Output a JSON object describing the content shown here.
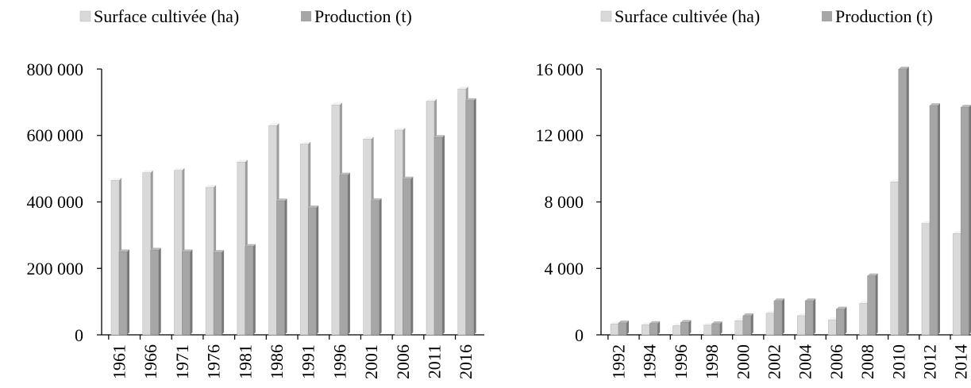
{
  "chart_data": [
    {
      "type": "bar",
      "title": "",
      "xlabel": "",
      "ylabel": "",
      "categories": [
        "1961",
        "1966",
        "1971",
        "1976",
        "1981",
        "1986",
        "1991",
        "1996",
        "2001",
        "2006",
        "2011",
        "2016"
      ],
      "series": [
        {
          "name": "Surface cultivée (ha)",
          "values": [
            465000,
            488000,
            495000,
            444000,
            520000,
            630000,
            574000,
            692000,
            589000,
            616000,
            703000,
            740000
          ]
        },
        {
          "name": "Production (t)",
          "values": [
            250000,
            255000,
            250000,
            248000,
            266000,
            403000,
            382000,
            481000,
            404000,
            469000,
            594000,
            705000
          ]
        }
      ],
      "ylim": [
        0,
        800000
      ],
      "yticks": [
        0,
        200000,
        400000,
        600000,
        800000
      ],
      "ytick_labels": [
        "0",
        "200 000",
        "400 000",
        "600 000",
        "800 000"
      ],
      "legend_position": "top",
      "colors": {
        "Surface cultivée (ha)": "#d9d9d9",
        "Production (t)": "#a6a6a6"
      },
      "style": "3d-bars",
      "grid": false
    },
    {
      "type": "bar",
      "title": "",
      "xlabel": "",
      "ylabel": "",
      "categories": [
        "1992",
        "1994",
        "1996",
        "1998",
        "2000",
        "2002",
        "2004",
        "2006",
        "2008",
        "2010",
        "2012",
        "2014"
      ],
      "series": [
        {
          "name": "Surface cultivée (ha)",
          "values": [
            650,
            600,
            550,
            580,
            850,
            1300,
            1150,
            900,
            1900,
            9200,
            6700,
            6100
          ]
        },
        {
          "name": "Production (t)",
          "values": [
            720,
            680,
            750,
            670,
            1150,
            2050,
            2050,
            1550,
            3550,
            16000,
            13800,
            13700
          ]
        }
      ],
      "ylim": [
        0,
        16000
      ],
      "yticks": [
        0,
        4000,
        8000,
        12000,
        16000
      ],
      "ytick_labels": [
        "0",
        "4 000",
        "8 000",
        "12 000",
        "16 000"
      ],
      "legend_position": "top",
      "colors": {
        "Surface cultivée (ha)": "#d9d9d9",
        "Production (t)": "#a6a6a6"
      },
      "style": "3d-bars",
      "grid": false
    }
  ]
}
